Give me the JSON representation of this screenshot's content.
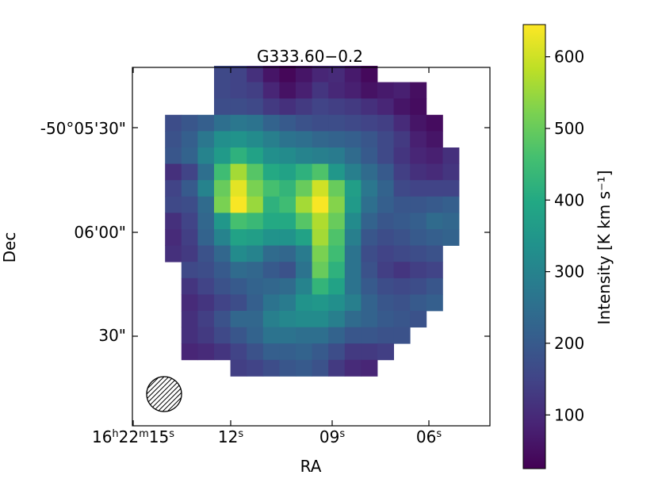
{
  "chart_data": {
    "type": "heatmap",
    "title": "G333.60−0.2",
    "xlabel": "RA",
    "ylabel": "Dec",
    "x_ticks": [
      {
        "main": "16",
        "sup1": "h",
        "mid1": "22",
        "sup2": "m",
        "mid2": "15",
        "sup3": "s"
      },
      {
        "main": "12",
        "sup1": "s"
      },
      {
        "main": "09",
        "sup1": "s"
      },
      {
        "main": "06",
        "sup1": "s"
      }
    ],
    "y_ticks": [
      "-50°05'30\"",
      "06'00\"",
      "30\""
    ],
    "colorbar": {
      "label": "Intensity [K km s⁻¹]",
      "min": 25,
      "max": 645,
      "ticks": [
        "100",
        "200",
        "300",
        "400",
        "500",
        "600"
      ],
      "tick_values": [
        100,
        200,
        300,
        400,
        500,
        600
      ]
    },
    "colormap": "viridis",
    "beam": "hatched-ellipse-lower-left",
    "grid_rows": 20,
    "grid_cols": 20,
    "pixels": [
      [
        null,
        null,
        null,
        null,
        null,
        160,
        150,
        110,
        60,
        35,
        60,
        90,
        100,
        70,
        40,
        null,
        null,
        null,
        null,
        null
      ],
      [
        null,
        null,
        null,
        null,
        null,
        160,
        150,
        140,
        90,
        55,
        80,
        120,
        95,
        80,
        55,
        70,
        80,
        50,
        null,
        null
      ],
      [
        null,
        null,
        null,
        null,
        null,
        170,
        170,
        160,
        130,
        110,
        130,
        150,
        140,
        130,
        110,
        90,
        60,
        45,
        null,
        null
      ],
      [
        null,
        null,
        170,
        190,
        210,
        250,
        270,
        260,
        220,
        200,
        180,
        170,
        170,
        160,
        150,
        140,
        100,
        60,
        45,
        null
      ],
      [
        null,
        null,
        180,
        210,
        270,
        330,
        340,
        320,
        290,
        260,
        250,
        230,
        220,
        210,
        190,
        160,
        130,
        80,
        60,
        null
      ],
      [
        null,
        null,
        190,
        220,
        300,
        360,
        420,
        380,
        330,
        320,
        300,
        290,
        280,
        240,
        200,
        160,
        120,
        90,
        80,
        110
      ],
      [
        null,
        null,
        110,
        150,
        250,
        450,
        560,
        480,
        400,
        380,
        420,
        470,
        350,
        290,
        240,
        200,
        140,
        110,
        100,
        120
      ],
      [
        null,
        null,
        150,
        200,
        300,
        500,
        620,
        520,
        460,
        430,
        500,
        600,
        500,
        370,
        270,
        220,
        160,
        150,
        150,
        150
      ],
      [
        null,
        null,
        160,
        170,
        240,
        520,
        640,
        550,
        420,
        450,
        560,
        640,
        530,
        360,
        250,
        210,
        190,
        190,
        200,
        210
      ],
      [
        null,
        null,
        110,
        150,
        230,
        350,
        460,
        440,
        400,
        400,
        480,
        570,
        500,
        320,
        220,
        190,
        200,
        210,
        240,
        230
      ],
      [
        null,
        null,
        100,
        140,
        220,
        300,
        380,
        370,
        340,
        340,
        380,
        560,
        470,
        290,
        190,
        170,
        180,
        200,
        210,
        220
      ],
      [
        null,
        null,
        110,
        130,
        180,
        230,
        320,
        300,
        240,
        230,
        280,
        520,
        450,
        260,
        170,
        150,
        160,
        170,
        180,
        null
      ],
      [
        null,
        null,
        null,
        160,
        170,
        200,
        240,
        230,
        200,
        180,
        260,
        500,
        420,
        260,
        180,
        140,
        120,
        140,
        150,
        null
      ],
      [
        null,
        null,
        null,
        120,
        150,
        180,
        200,
        220,
        230,
        240,
        300,
        430,
        380,
        260,
        200,
        170,
        160,
        170,
        190,
        null
      ],
      [
        null,
        null,
        null,
        100,
        120,
        150,
        170,
        210,
        260,
        280,
        340,
        350,
        330,
        290,
        220,
        190,
        180,
        200,
        210,
        null
      ],
      [
        null,
        null,
        null,
        110,
        140,
        180,
        230,
        230,
        290,
        310,
        320,
        320,
        290,
        240,
        220,
        200,
        190,
        180,
        null,
        null
      ],
      [
        null,
        null,
        null,
        110,
        130,
        160,
        190,
        220,
        260,
        260,
        250,
        250,
        220,
        190,
        190,
        180,
        180,
        null,
        null,
        null
      ],
      [
        null,
        null,
        null,
        90,
        100,
        120,
        150,
        180,
        210,
        210,
        220,
        200,
        170,
        130,
        130,
        140,
        null,
        null,
        null,
        null
      ],
      [
        null,
        null,
        null,
        null,
        null,
        null,
        140,
        150,
        170,
        190,
        200,
        180,
        130,
        100,
        90,
        null,
        null,
        null,
        null,
        null
      ],
      [
        null,
        null,
        null,
        null,
        null,
        null,
        null,
        null,
        null,
        null,
        null,
        null,
        null,
        null,
        null,
        null,
        null,
        null,
        null,
        null
      ]
    ]
  }
}
